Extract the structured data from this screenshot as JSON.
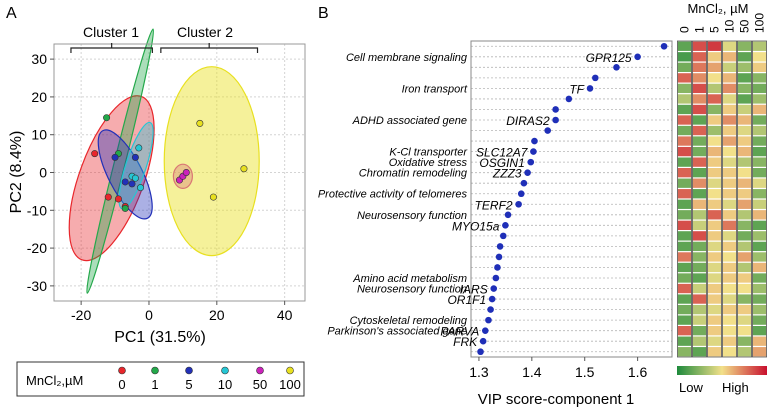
{
  "colors": {
    "c0": "#e8262b",
    "c1": "#23a84a",
    "c5": "#2230b8",
    "c10": "#26c6d4",
    "c50": "#cc22bb",
    "c100": "#e8e020",
    "vip": "#1f2fb8",
    "heat_low": "#1e8a3c",
    "heat_mid": "#f2e08a",
    "heat_high": "#c8102e",
    "panel_border": "#777777",
    "grid": "#b5b5b5"
  },
  "panel_a": {
    "letter": "A",
    "cluster1_label": "Cluster 1",
    "cluster2_label": "Cluster 2",
    "legend_title": "MnCl₂,µM"
  },
  "panel_b": {
    "letter": "B",
    "heatmap_title": "MnCl₂, µM",
    "legend_low": "Low",
    "legend_high": "High",
    "heatmap": {
      "columns": [
        "0",
        "1",
        "5",
        "10",
        "50",
        "100"
      ],
      "rows": [
        [
          0.15,
          0.85,
          0.9,
          0.45,
          0.25,
          0.35
        ],
        [
          0.1,
          0.8,
          0.55,
          0.6,
          0.15,
          0.5
        ],
        [
          0.2,
          0.75,
          0.65,
          0.4,
          0.3,
          0.55
        ],
        [
          0.8,
          0.7,
          0.5,
          0.6,
          0.15,
          0.25
        ],
        [
          0.25,
          0.85,
          0.35,
          0.7,
          0.25,
          0.2
        ],
        [
          0.35,
          0.7,
          0.8,
          0.45,
          0.15,
          0.3
        ],
        [
          0.15,
          0.85,
          0.25,
          0.55,
          0.4,
          0.6
        ],
        [
          0.8,
          0.15,
          0.55,
          0.7,
          0.6,
          0.2
        ],
        [
          0.2,
          0.8,
          0.3,
          0.55,
          0.45,
          0.35
        ],
        [
          0.75,
          0.2,
          0.5,
          0.65,
          0.55,
          0.2
        ],
        [
          0.85,
          0.2,
          0.6,
          0.5,
          0.6,
          0.15
        ],
        [
          0.15,
          0.8,
          0.55,
          0.45,
          0.35,
          0.25
        ],
        [
          0.8,
          0.15,
          0.55,
          0.55,
          0.5,
          0.2
        ],
        [
          0.2,
          0.7,
          0.45,
          0.55,
          0.6,
          0.45
        ],
        [
          0.8,
          0.15,
          0.5,
          0.55,
          0.55,
          0.25
        ],
        [
          0.15,
          0.6,
          0.55,
          0.45,
          0.65,
          0.4
        ],
        [
          0.2,
          0.35,
          0.8,
          0.55,
          0.35,
          0.6
        ],
        [
          0.85,
          0.4,
          0.55,
          0.75,
          0.25,
          0.15
        ],
        [
          0.15,
          0.85,
          0.55,
          0.45,
          0.2,
          0.3
        ],
        [
          0.15,
          0.2,
          0.45,
          0.55,
          0.35,
          0.15
        ],
        [
          0.75,
          0.25,
          0.55,
          0.5,
          0.65,
          0.3
        ],
        [
          0.15,
          0.2,
          0.45,
          0.55,
          0.35,
          0.6
        ],
        [
          0.2,
          0.15,
          0.45,
          0.55,
          0.55,
          0.2
        ],
        [
          0.8,
          0.4,
          0.55,
          0.5,
          0.5,
          0.3
        ],
        [
          0.15,
          0.8,
          0.55,
          0.45,
          0.25,
          0.2
        ],
        [
          0.2,
          0.35,
          0.45,
          0.55,
          0.55,
          0.3
        ],
        [
          0.15,
          0.4,
          0.55,
          0.5,
          0.45,
          0.2
        ],
        [
          0.8,
          0.2,
          0.55,
          0.5,
          0.5,
          0.15
        ],
        [
          0.15,
          0.35,
          0.45,
          0.55,
          0.25,
          0.6
        ],
        [
          0.25,
          0.15,
          0.55,
          0.5,
          0.35,
          0.65
        ]
      ]
    }
  },
  "chart_data": [
    {
      "type": "scatter",
      "title": "",
      "xlabel": "PC1 (31.5%)",
      "ylabel": "PC2 (8.4%)",
      "xlim": [
        -28,
        46
      ],
      "ylim": [
        -34,
        34
      ],
      "xticks": [
        -20,
        0,
        20,
        40
      ],
      "yticks": [
        -30,
        -20,
        -10,
        0,
        10,
        20,
        30
      ],
      "grid": true,
      "legend_position": "bottom",
      "series": [
        {
          "name": "0",
          "points": [
            [
              -16,
              5
            ],
            [
              -12,
              -6.5
            ],
            [
              -9,
              -7
            ],
            [
              -7,
              -9
            ]
          ],
          "ellipse": {
            "cx": -11,
            "cy": -1.5,
            "rx": 9.5,
            "ry": 23,
            "angle_deg": 20
          }
        },
        {
          "name": "1",
          "points": [
            [
              -12.5,
              14.5
            ],
            [
              -9,
              5
            ],
            [
              -7,
              -9.5
            ]
          ],
          "ellipse": {
            "cx": -8.5,
            "cy": 3,
            "rx": 1.6,
            "ry": 36,
            "angle_deg": 14
          }
        },
        {
          "name": "5",
          "points": [
            [
              -10,
              4
            ],
            [
              -7,
              -2.5
            ],
            [
              -5,
              -3
            ],
            [
              -4,
              4
            ]
          ],
          "ellipse": {
            "cx": -7,
            "cy": -0.5,
            "rx": 5,
            "ry": 13,
            "angle_deg": -27
          }
        },
        {
          "name": "10",
          "points": [
            [
              -3,
              6.5
            ],
            [
              -5,
              -1
            ],
            [
              -4,
              -1.5
            ],
            [
              -2.5,
              -4
            ]
          ],
          "ellipse": {
            "cx": -3.8,
            "cy": 1.8,
            "rx": 3,
            "ry": 12,
            "angle_deg": 18
          }
        },
        {
          "name": "50",
          "points": [
            [
              9,
              -2
            ],
            [
              10,
              -1
            ],
            [
              11,
              0
            ]
          ],
          "ellipse": {
            "cx": 10,
            "cy": -1,
            "rx": 2.8,
            "ry": 3.2,
            "angle_deg": 0
          }
        },
        {
          "name": "100",
          "points": [
            [
              15,
              13
            ],
            [
              19,
              -6.5
            ],
            [
              28,
              1
            ]
          ],
          "ellipse": {
            "cx": 18.5,
            "cy": 3,
            "rx": 14,
            "ry": 25,
            "angle_deg": 0
          }
        }
      ],
      "clusters": [
        {
          "label": "Cluster 1",
          "range": [
            -23,
            1
          ]
        },
        {
          "label": "Cluster 2",
          "range": [
            3.5,
            32
          ]
        }
      ]
    },
    {
      "type": "scatter",
      "title": "",
      "xlabel": "VIP score-component 1",
      "ylabel": "",
      "xlim": [
        1.285,
        1.665
      ],
      "xticks": [
        1.3,
        1.4,
        1.5,
        1.6
      ],
      "grid": true,
      "vip_scores": [
        1.65,
        1.6,
        1.56,
        1.52,
        1.51,
        1.47,
        1.445,
        1.445,
        1.43,
        1.405,
        1.403,
        1.398,
        1.392,
        1.385,
        1.38,
        1.375,
        1.355,
        1.35,
        1.346,
        1.34,
        1.338,
        1.335,
        1.332,
        1.328,
        1.325,
        1.322,
        1.318,
        1.312,
        1.308,
        1.303
      ],
      "gene_labels": [
        {
          "row": 1,
          "label": "GPR125"
        },
        {
          "row": 4,
          "label": "TF"
        },
        {
          "row": 7,
          "label": "DIRAS2"
        },
        {
          "row": 10,
          "label": "SLC12A7"
        },
        {
          "row": 11,
          "label": "OSGIN1"
        },
        {
          "row": 12,
          "label": "ZZZ3"
        },
        {
          "row": 15,
          "label": "TERF2"
        },
        {
          "row": 17,
          "label": "MYO15a"
        },
        {
          "row": 23,
          "label": "IARS"
        },
        {
          "row": 24,
          "label": "OR1F1"
        },
        {
          "row": 27,
          "label": "PARVA"
        },
        {
          "row": 28,
          "label": "FRK"
        }
      ],
      "category_labels": [
        {
          "row": 1,
          "label": "Cell membrane signaling"
        },
        {
          "row": 4,
          "label": "Iron transport"
        },
        {
          "row": 7,
          "label": "ADHD associated gene"
        },
        {
          "row": 10,
          "label": "K-Cl transporter"
        },
        {
          "row": 11,
          "label": "Oxidative stress"
        },
        {
          "row": 12,
          "label": "Chromatin remodeling"
        },
        {
          "row": 14,
          "label": "Protective activity of telomeres"
        },
        {
          "row": 16,
          "label": "Neurosensory function"
        },
        {
          "row": 22,
          "label": "Amino acid metabolism"
        },
        {
          "row": 23,
          "label": "Neurosensory function"
        },
        {
          "row": 26,
          "label": "Cytoskeletal remodeling"
        },
        {
          "row": 27,
          "label": "Parkinson's associated gene"
        }
      ]
    }
  ]
}
